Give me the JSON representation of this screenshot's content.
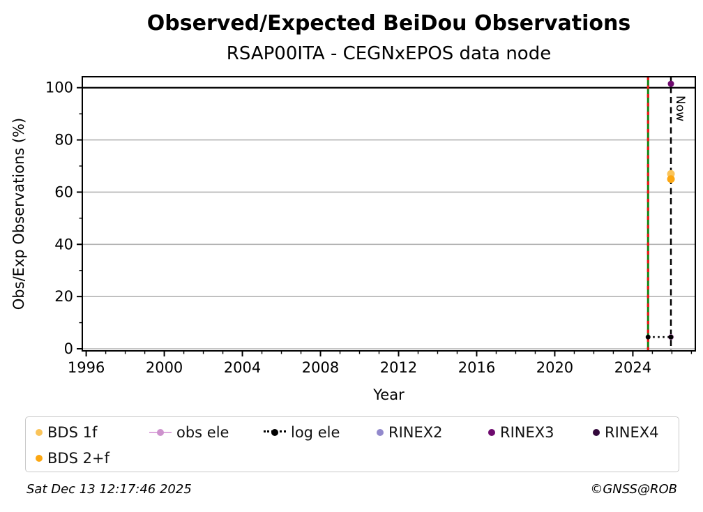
{
  "title": "Observed/Expected BeiDou Observations",
  "subtitle": "RSAP00ITA - CEGNxEPOS data node",
  "footer": {
    "timestamp": "Sat Dec 13 12:17:46 2025",
    "credit": "©GNSS@ROB"
  },
  "legend": {
    "items": [
      {
        "label": "BDS 1f",
        "marker": "dot",
        "color": "#FAC45A"
      },
      {
        "label": "obs ele",
        "marker": "line-dot",
        "color": "#CD92CD",
        "line_color": "#DDA8DD"
      },
      {
        "label": "log ele",
        "marker": "dotted-line-dot",
        "color": "#000000"
      },
      {
        "label": "RINEX2",
        "marker": "dot",
        "color": "#9289CC"
      },
      {
        "label": "RINEX3",
        "marker": "dot",
        "color": "#6E0A6E"
      },
      {
        "label": "RINEX4",
        "marker": "dot",
        "color": "#33093B"
      },
      {
        "label": "BDS 2+f",
        "marker": "dot",
        "color": "#FCA712"
      }
    ]
  },
  "chart_data": {
    "type": "scatter",
    "title": "Observed/Expected BeiDou Observations",
    "subtitle": "RSAP00ITA - CEGNxEPOS data node",
    "xlabel": "Year",
    "ylabel": "Obs/Exp Observations (%)",
    "xlim": [
      1995.8,
      2027.2
    ],
    "ylim": [
      -0.8,
      104.2
    ],
    "x_major_ticks": [
      1996,
      2000,
      2004,
      2008,
      2012,
      2016,
      2020,
      2024
    ],
    "x_minor_tick_step_years": 1,
    "y_major_ticks": [
      0,
      20,
      40,
      60,
      80,
      100
    ],
    "y_minor_ticks": [
      10,
      30,
      50,
      70,
      90
    ],
    "grid": "horizontal-only",
    "grid_color": "#b3b3b3",
    "hundred_percent_line": {
      "y": 100,
      "color": "#000000"
    },
    "event_line": {
      "x": 2024.78,
      "style": "solid-green-with-red-dashes",
      "green": "#128412",
      "red": "#EE1111"
    },
    "now_line": {
      "x": 2025.95,
      "label": "Now",
      "style": "dashed-black",
      "color": "#000000"
    },
    "series": [
      {
        "name": "BDS 1f",
        "color": "#FAC45A",
        "marker": "dot",
        "r": 5.5,
        "points": [
          {
            "x": 2025.95,
            "y": 67
          }
        ]
      },
      {
        "name": "BDS 2+f",
        "color": "#FCA712",
        "marker": "dot",
        "r": 5.5,
        "points": [
          {
            "x": 2025.95,
            "y": 65
          }
        ]
      },
      {
        "name": "obs ele",
        "color": "#CD92CD",
        "line_color": "#DDA8DD",
        "marker": "line-dot",
        "r": 4.2,
        "points": [
          {
            "x": 2025.95,
            "y": 4.5
          }
        ]
      },
      {
        "name": "log ele",
        "color": "#000000",
        "marker": "dotted-line-dot",
        "r": 3.5,
        "points": [
          {
            "x": 2024.78,
            "y": 4.5
          },
          {
            "x": 2025.95,
            "y": 4.5
          }
        ]
      },
      {
        "name": "RINEX2",
        "color": "#9289CC",
        "marker": "dot",
        "r": 4.5,
        "points": []
      },
      {
        "name": "RINEX3",
        "color": "#6E0A6E",
        "marker": "dot",
        "r": 4.5,
        "points": [
          {
            "x": 2025.95,
            "y": 101.5
          }
        ]
      },
      {
        "name": "RINEX4",
        "color": "#33093B",
        "marker": "dot",
        "r": 4.5,
        "points": []
      }
    ],
    "legend_position": "below"
  }
}
